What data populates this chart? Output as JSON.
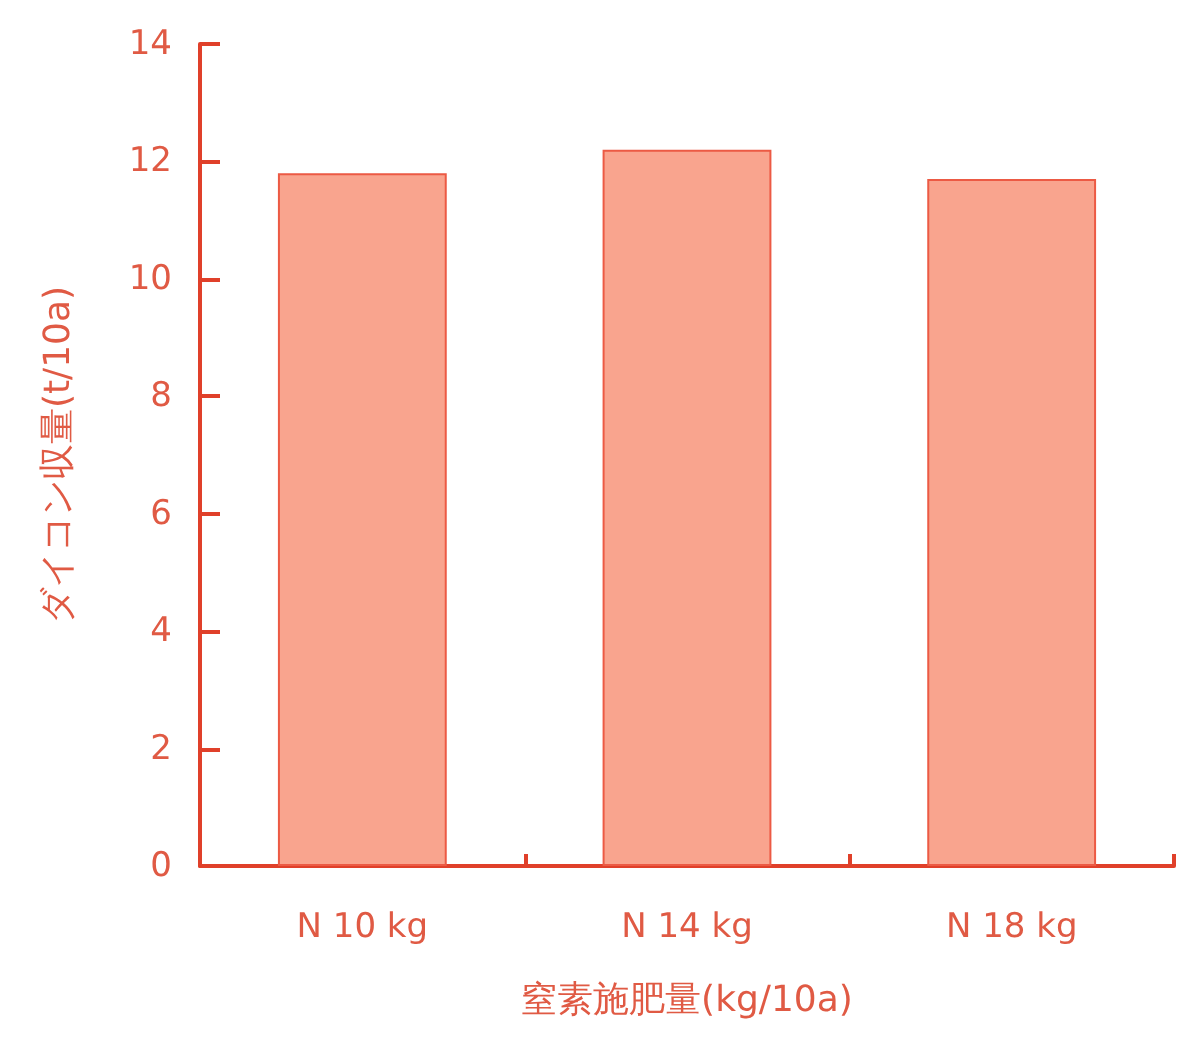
{
  "chart_data": {
    "type": "bar",
    "xlabel": "窒素施肥量(kg/10a)",
    "ylabel": "ダイコン収量(t/10a)",
    "categories": [
      "N 10 kg",
      "N 14 kg",
      "N 18 kg"
    ],
    "values": [
      11.8,
      12.2,
      11.7
    ],
    "color": "#f9a48e",
    "ylim": [
      0,
      14
    ],
    "yticks": [
      0,
      2,
      4,
      6,
      8,
      10,
      12,
      14
    ],
    "grid": false
  }
}
